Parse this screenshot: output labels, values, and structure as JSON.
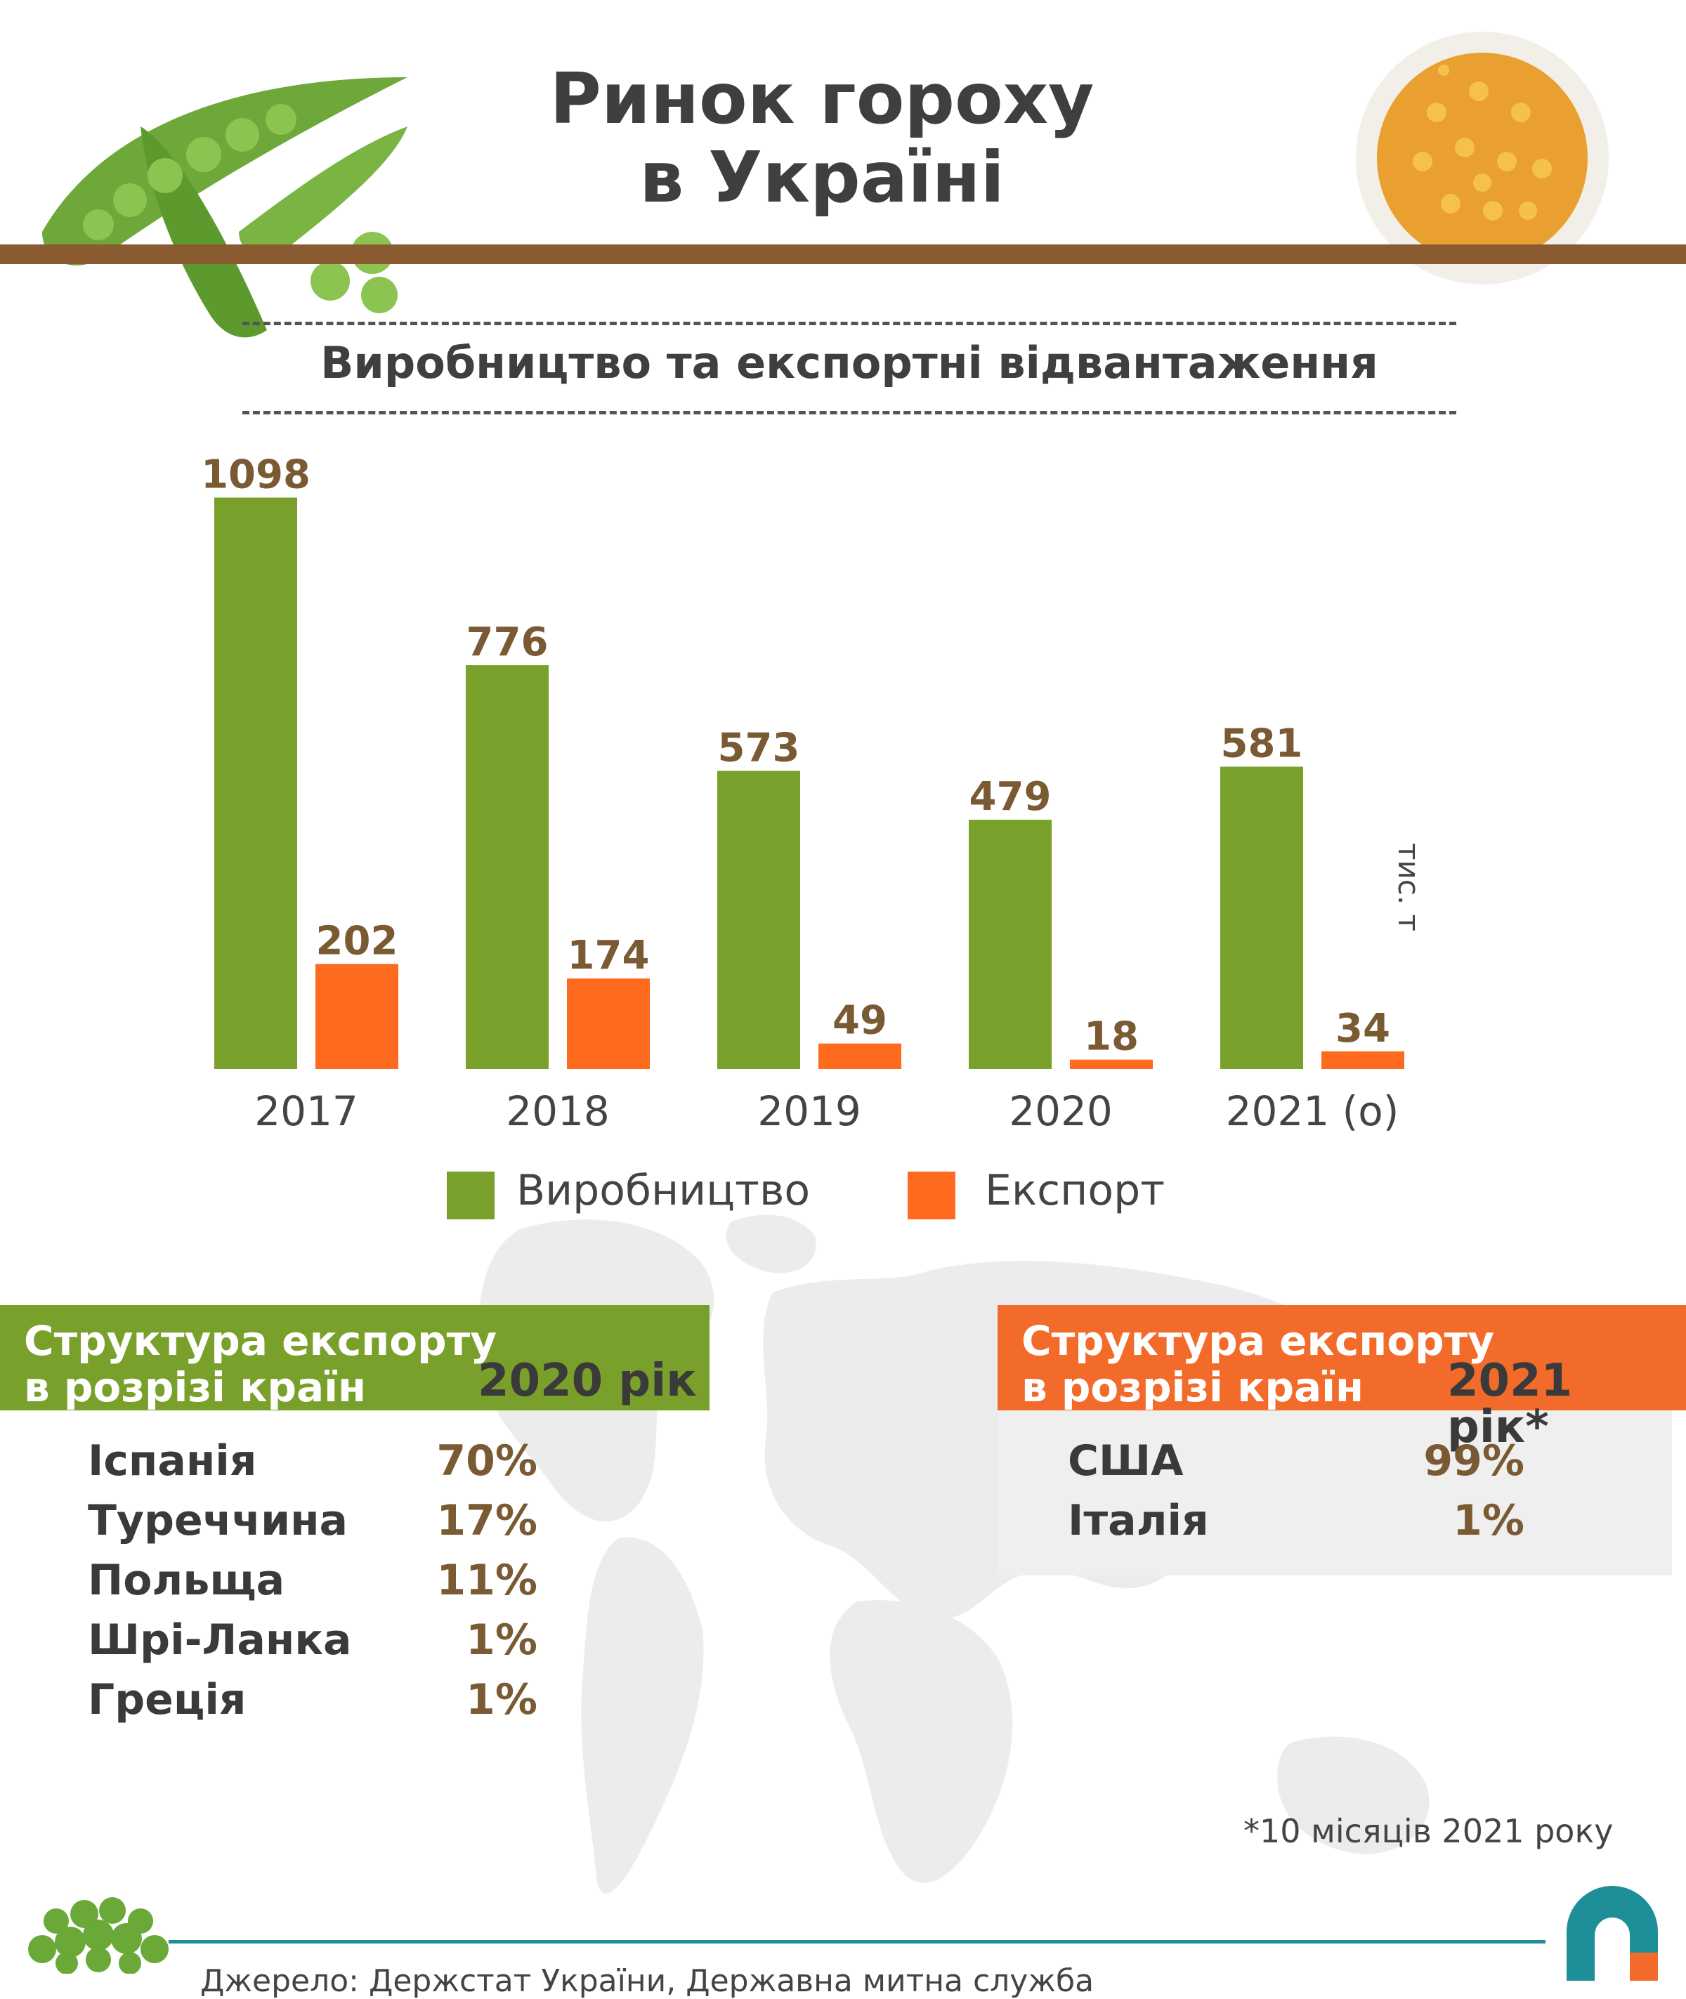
{
  "header": {
    "title_line1": "Ринок гороху",
    "title_line2": "в Україні"
  },
  "chart_title": "Виробництво та експортні відвантаження",
  "unit_label": "тис. т",
  "legend": {
    "production": "Виробництво",
    "export": "Експорт"
  },
  "colors": {
    "production": "#79a02a",
    "export": "#fe6a1e",
    "value_label": "#7a5a32",
    "brown_bar": "#8a5a30",
    "green_panel": "#79a02a",
    "orange_panel": "#f26b2a"
  },
  "chart_data": {
    "type": "bar",
    "title": "Виробництво та експортні відвантаження",
    "ylabel": "тис. т",
    "categories": [
      "2017",
      "2018",
      "2019",
      "2020",
      "2021 (о)"
    ],
    "series": [
      {
        "name": "Виробництво",
        "values": [
          1098,
          776,
          573,
          479,
          581
        ]
      },
      {
        "name": "Експорт",
        "values": [
          202,
          174,
          49,
          18,
          34
        ]
      }
    ],
    "ylim": [
      0,
      1100
    ],
    "grid": false,
    "legend": "bottom"
  },
  "structure_2020": {
    "heading_line1": "Структура експорту",
    "heading_line2": "в розрізі країн",
    "year": "2020  рік",
    "rows": [
      {
        "country": "Іспанія",
        "pct": "70%"
      },
      {
        "country": "Туреччина",
        "pct": "17%"
      },
      {
        "country": "Польща",
        "pct": "11%"
      },
      {
        "country": "Шрі-Ланка",
        "pct": "1%"
      },
      {
        "country": "Греція",
        "pct": "1%"
      }
    ]
  },
  "structure_2021": {
    "heading_line1": "Структура експорту",
    "heading_line2": "в розрізі країн",
    "year": "2021  рік*",
    "rows": [
      {
        "country": "США",
        "pct": "99%"
      },
      {
        "country": "Італія",
        "pct": "1%"
      }
    ]
  },
  "footnote": "*10 місяців 2021 року",
  "source": "Джерело:  Держстат України, Державна митна служба",
  "icons": {
    "pea_pod": "pea-pod-icon",
    "bowl": "split-peas-bowl-icon",
    "peas_pile": "peas-pile-icon",
    "logo": "brand-logo-icon",
    "world_map": "world-map-icon"
  }
}
